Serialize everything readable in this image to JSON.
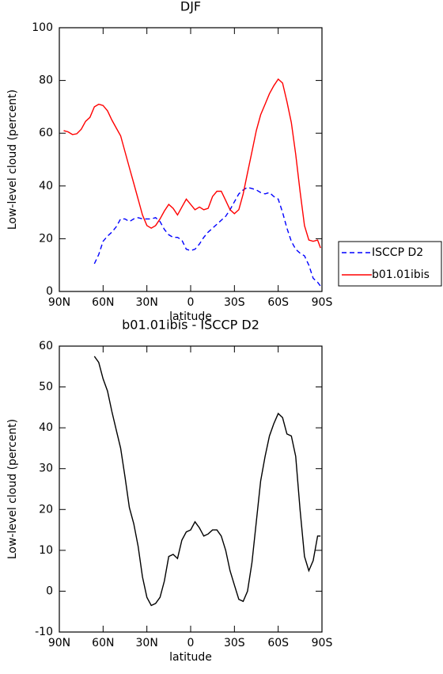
{
  "chart_data": [
    {
      "type": "line",
      "title": "DJF",
      "xlabel": "latitude",
      "ylabel": "Low-level cloud (percent)",
      "x": [
        87,
        84,
        81,
        78,
        75,
        72,
        69,
        66,
        63,
        60,
        57,
        54,
        51,
        48,
        45,
        42,
        39,
        36,
        33,
        30,
        27,
        24,
        21,
        18,
        15,
        12,
        9,
        6,
        3,
        0,
        -3,
        -6,
        -9,
        -12,
        -15,
        -18,
        -21,
        -24,
        -27,
        -30,
        -33,
        -36,
        -39,
        -42,
        -45,
        -48,
        -51,
        -54,
        -57,
        -60,
        -63,
        -66,
        -69,
        -72,
        -75,
        -78,
        -81,
        -84,
        -87,
        -89
      ],
      "series": [
        {
          "name": "ISCCP D2",
          "color": "#0000ff",
          "linestyle": "dashed",
          "values": [
            null,
            null,
            null,
            null,
            null,
            null,
            null,
            10.5,
            14,
            19,
            21,
            22.5,
            24.5,
            27.5,
            27.5,
            26.5,
            27.5,
            28,
            27.5,
            27.5,
            27.5,
            28,
            26.5,
            23.5,
            21.5,
            20.5,
            20.5,
            19.5,
            16,
            15.5,
            16,
            18,
            20.5,
            22.5,
            24,
            25.5,
            27,
            28.5,
            31,
            34,
            37,
            38.5,
            39.5,
            39,
            38.5,
            37.5,
            37,
            37.5,
            36,
            35,
            30,
            24,
            19,
            16,
            14.5,
            13.5,
            10,
            5,
            3.5,
            2
          ]
        },
        {
          "name": "b01.01ibis",
          "color": "#ff0000",
          "linestyle": "solid",
          "values": [
            61,
            60.5,
            59.5,
            59.8,
            61.5,
            64.5,
            66,
            70,
            71,
            70.5,
            68.5,
            65,
            62,
            59,
            53,
            47,
            41,
            35,
            29,
            25,
            24,
            25,
            27.5,
            30.5,
            33,
            31.5,
            29,
            32,
            35,
            33,
            31,
            32,
            31,
            31.5,
            36,
            38,
            38,
            34.5,
            31,
            29.5,
            31,
            37,
            45,
            53,
            61,
            67,
            71,
            75,
            78,
            80.5,
            79,
            72,
            64,
            52,
            38,
            25,
            19.5,
            19,
            19.5,
            16.5
          ]
        }
      ],
      "xlim": [
        90,
        -90
      ],
      "xticks": [
        {
          "value": 90,
          "label": "90N"
        },
        {
          "value": 60,
          "label": "60N"
        },
        {
          "value": 30,
          "label": "30N"
        },
        0,
        {
          "value": -30,
          "label": "30S"
        },
        {
          "value": -60,
          "label": "60S"
        },
        {
          "value": -90,
          "label": "90S"
        }
      ],
      "ylim": [
        0,
        100
      ],
      "yticks": [
        0,
        20,
        40,
        60,
        80,
        100
      ],
      "legend": "right"
    },
    {
      "type": "line",
      "title": "b01.01ibis - ISCCP D2",
      "xlabel": "latitude",
      "ylabel": "Low-level cloud (percent)",
      "x": [
        66,
        63,
        60,
        57,
        54,
        51,
        48,
        45,
        42,
        39,
        36,
        33,
        30,
        27,
        24,
        21,
        18,
        15,
        12,
        9,
        6,
        3,
        0,
        -3,
        -6,
        -9,
        -12,
        -15,
        -18,
        -21,
        -24,
        -27,
        -30,
        -33,
        -36,
        -39,
        -42,
        -45,
        -48,
        -51,
        -54,
        -57,
        -60,
        -63,
        -66,
        -69,
        -72,
        -75,
        -78,
        -81,
        -84,
        -87,
        -89
      ],
      "values": [
        57.5,
        56,
        52,
        49,
        44,
        39.5,
        35,
        28,
        20.5,
        16.5,
        11,
        3.5,
        -1.5,
        -3.5,
        -3,
        -1.5,
        2.5,
        8.5,
        9,
        8,
        12.5,
        14.5,
        15,
        17,
        15.5,
        13.5,
        14,
        15,
        15,
        13.5,
        10,
        5,
        1.5,
        -2,
        -2.5,
        0,
        7,
        17,
        27,
        33,
        38,
        41,
        43.5,
        42.5,
        38.5,
        38,
        33,
        20,
        8.5,
        5,
        7.5,
        13.5,
        13.5
      ],
      "color": "#000000",
      "xlim": [
        90,
        -90
      ],
      "xticks": [
        {
          "value": 90,
          "label": "90N"
        },
        {
          "value": 60,
          "label": "60N"
        },
        {
          "value": 30,
          "label": "30N"
        },
        0,
        {
          "value": -30,
          "label": "30S"
        },
        {
          "value": -60,
          "label": "60S"
        },
        {
          "value": -90,
          "label": "90S"
        }
      ],
      "ylim": [
        -10,
        60
      ],
      "yticks": [
        -10,
        0,
        10,
        20,
        30,
        40,
        50,
        60
      ]
    }
  ]
}
